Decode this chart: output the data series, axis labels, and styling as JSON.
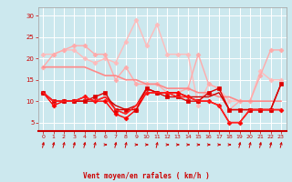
{
  "title": "",
  "xlabel": "Vent moyen/en rafales ( km/h )",
  "xlim": [
    -0.5,
    23.5
  ],
  "ylim": [
    3,
    32
  ],
  "yticks": [
    5,
    10,
    15,
    20,
    25,
    30
  ],
  "xticks": [
    0,
    1,
    2,
    3,
    4,
    5,
    6,
    7,
    8,
    9,
    10,
    11,
    12,
    13,
    14,
    15,
    16,
    17,
    18,
    19,
    20,
    21,
    22,
    23
  ],
  "bg_color": "#cce8ee",
  "grid_color": "#ffffff",
  "lines": [
    {
      "x": [
        0,
        1,
        2,
        3,
        4,
        5,
        6,
        7,
        8,
        9,
        10,
        11,
        12,
        13,
        14,
        15,
        16,
        17,
        18,
        19,
        20,
        21,
        22,
        23
      ],
      "y": [
        21,
        21,
        22,
        22,
        20,
        19,
        20,
        19,
        24,
        29,
        23,
        28,
        21,
        21,
        21,
        9,
        14,
        13,
        10,
        10,
        10,
        17,
        15,
        15
      ],
      "color": "#ffbbbb",
      "lw": 1.0,
      "marker": "D",
      "ms": 2.5
    },
    {
      "x": [
        0,
        1,
        2,
        3,
        4,
        5,
        6,
        7,
        8,
        9,
        10,
        11,
        12,
        13,
        14,
        15,
        16,
        17,
        18,
        19,
        20,
        21,
        22,
        23
      ],
      "y": [
        18,
        21,
        22,
        23,
        23,
        21,
        21,
        15,
        18,
        14,
        14,
        14,
        12,
        12,
        13,
        21,
        14,
        13,
        8,
        10,
        10,
        16,
        22,
        22
      ],
      "color": "#ffaaaa",
      "lw": 1.0,
      "marker": "D",
      "ms": 2.5
    },
    {
      "x": [
        0,
        1,
        2,
        3,
        4,
        5,
        6,
        7,
        8,
        9,
        10,
        11,
        12,
        13,
        14,
        15,
        16,
        17,
        18,
        19,
        20,
        21,
        22,
        23
      ],
      "y": [
        18,
        18,
        18,
        18,
        18,
        17,
        16,
        16,
        15,
        15,
        14,
        14,
        13,
        13,
        13,
        12,
        12,
        11,
        11,
        10,
        10,
        10,
        10,
        10
      ],
      "color": "#ff8888",
      "lw": 1.2,
      "marker": null,
      "ms": 0
    },
    {
      "x": [
        0,
        1,
        2,
        3,
        4,
        5,
        6,
        7,
        8,
        9,
        10,
        11,
        12,
        13,
        14,
        15,
        16,
        17,
        18,
        19,
        20,
        21,
        22,
        23
      ],
      "y": [
        12,
        10,
        10,
        10,
        10,
        10,
        11,
        9,
        8,
        9,
        13,
        12,
        12,
        12,
        11,
        11,
        11,
        12,
        8,
        8,
        8,
        8,
        8,
        14
      ],
      "color": "#cc0000",
      "lw": 1.0,
      "marker": null,
      "ms": 0
    },
    {
      "x": [
        0,
        1,
        2,
        3,
        4,
        5,
        6,
        7,
        8,
        9,
        10,
        11,
        12,
        13,
        14,
        15,
        16,
        17,
        18,
        19,
        20,
        21,
        22,
        23
      ],
      "y": [
        12,
        10,
        10,
        10,
        11,
        10,
        11,
        8,
        7,
        9,
        12,
        12,
        12,
        11,
        11,
        10,
        10,
        9,
        5,
        5,
        8,
        8,
        8,
        8
      ],
      "color": "#ff4444",
      "lw": 1.0,
      "marker": null,
      "ms": 0
    },
    {
      "x": [
        0,
        1,
        2,
        3,
        4,
        5,
        6,
        7,
        8,
        9,
        10,
        11,
        12,
        13,
        14,
        15,
        16,
        17,
        18,
        19,
        20,
        21,
        22,
        23
      ],
      "y": [
        12,
        9,
        10,
        10,
        11,
        10,
        10,
        7,
        6,
        8,
        12,
        12,
        12,
        12,
        11,
        10,
        10,
        9,
        5,
        5,
        8,
        8,
        8,
        8
      ],
      "color": "#ff0000",
      "lw": 1.0,
      "marker": "D",
      "ms": 2.5
    },
    {
      "x": [
        0,
        1,
        2,
        3,
        4,
        5,
        6,
        7,
        8,
        9,
        10,
        11,
        12,
        13,
        14,
        15,
        16,
        17,
        18,
        19,
        20,
        21,
        22,
        23
      ],
      "y": [
        12,
        10,
        10,
        10,
        10,
        11,
        12,
        8,
        8,
        8,
        13,
        12,
        11,
        11,
        10,
        10,
        12,
        13,
        8,
        8,
        8,
        8,
        8,
        14
      ],
      "color": "#dd0000",
      "lw": 1.0,
      "marker": "s",
      "ms": 2.5
    },
    {
      "x": [
        0,
        1,
        2,
        3,
        4,
        5,
        6,
        7,
        8,
        9,
        10,
        11,
        12,
        13,
        14,
        15,
        16,
        17,
        18,
        19,
        20,
        21,
        22,
        23
      ],
      "y": [
        12,
        10,
        10,
        10,
        11,
        10,
        11,
        8,
        7,
        9,
        12,
        12,
        12,
        11,
        11,
        10,
        10,
        9,
        5,
        5,
        8,
        8,
        8,
        8
      ],
      "color": "#ff2222",
      "lw": 1.0,
      "marker": null,
      "ms": 0
    }
  ],
  "arrow_color": "#cc0000",
  "arrow_directions": [
    45,
    45,
    45,
    45,
    45,
    45,
    0,
    45,
    45,
    0,
    0,
    45,
    0,
    0,
    0,
    0,
    0,
    0,
    0,
    45,
    45,
    45,
    45,
    45
  ]
}
